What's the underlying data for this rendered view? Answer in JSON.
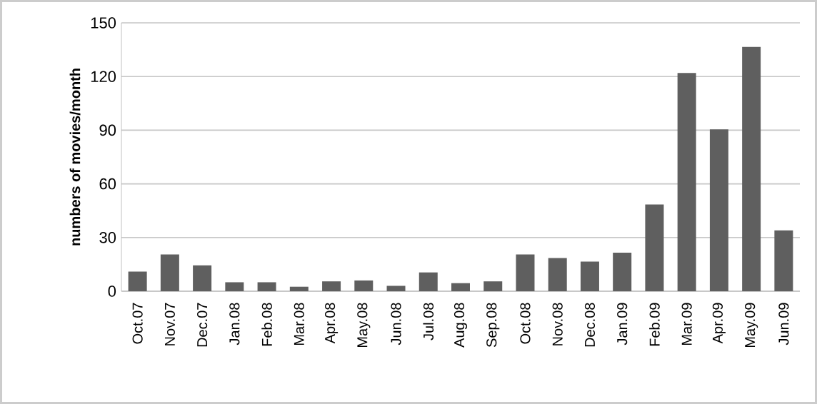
{
  "chart_data": {
    "type": "bar",
    "ylabel": "numbers of movies/month",
    "categories": [
      "Oct.07",
      "Nov.07",
      "Dec.07",
      "Jan.08",
      "Feb.08",
      "Mar.08",
      "Apr.08",
      "May.08",
      "Jun.08",
      "Jul.08",
      "Aug.08",
      "Sep.08",
      "Oct.08",
      "Nov.08",
      "Dec.08",
      "Jan.09",
      "Feb.09",
      "Mar.09",
      "Apr.09",
      "May.09",
      "Jun.09"
    ],
    "values": [
      11,
      20.5,
      14.5,
      5,
      5,
      2.5,
      5.5,
      6,
      3,
      10.5,
      4.5,
      5.5,
      20.5,
      18.5,
      16.5,
      21.5,
      48.5,
      122,
      90.5,
      136.5,
      34
    ],
    "color": "#5f5f5f",
    "ylim": [
      0,
      150
    ],
    "yticks": [
      0,
      30,
      60,
      90,
      120,
      150
    ],
    "grid": "y"
  }
}
